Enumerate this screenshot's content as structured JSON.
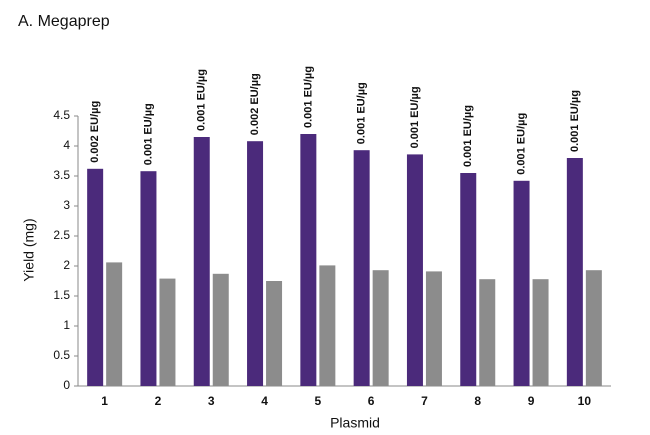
{
  "chart_data": {
    "type": "bar",
    "title": "A. Megaprep",
    "x_label": "Plasmid",
    "y_label": "Yield (mg)",
    "categories": [
      "1",
      "2",
      "3",
      "4",
      "5",
      "6",
      "7",
      "8",
      "9",
      "10"
    ],
    "series": [
      {
        "color": "#4b2a7b",
        "values": [
          3.62,
          3.58,
          4.15,
          4.08,
          4.2,
          3.93,
          3.86,
          3.55,
          3.42,
          3.8
        ]
      },
      {
        "color": "#8c8c8c",
        "values": [
          2.06,
          1.79,
          1.87,
          1.75,
          2.01,
          1.93,
          1.91,
          1.78,
          1.78,
          1.93
        ]
      }
    ],
    "annotations": [
      "0.002 EU/µg",
      "0.001 EU/µg",
      "0.001 EU/µg",
      "0.002 EU/µg",
      "0.001 EU/µg",
      "0.001 EU/µg",
      "0.001 EU/µg",
      "0.001 EU/µg",
      "0.001 EU/µg",
      "0.001 EU/µg"
    ],
    "ylim": [
      0,
      4.5
    ],
    "yticks": [
      0,
      0.5,
      1,
      1.5,
      2,
      2.5,
      3,
      3.5,
      4,
      4.5
    ],
    "grid": false
  }
}
